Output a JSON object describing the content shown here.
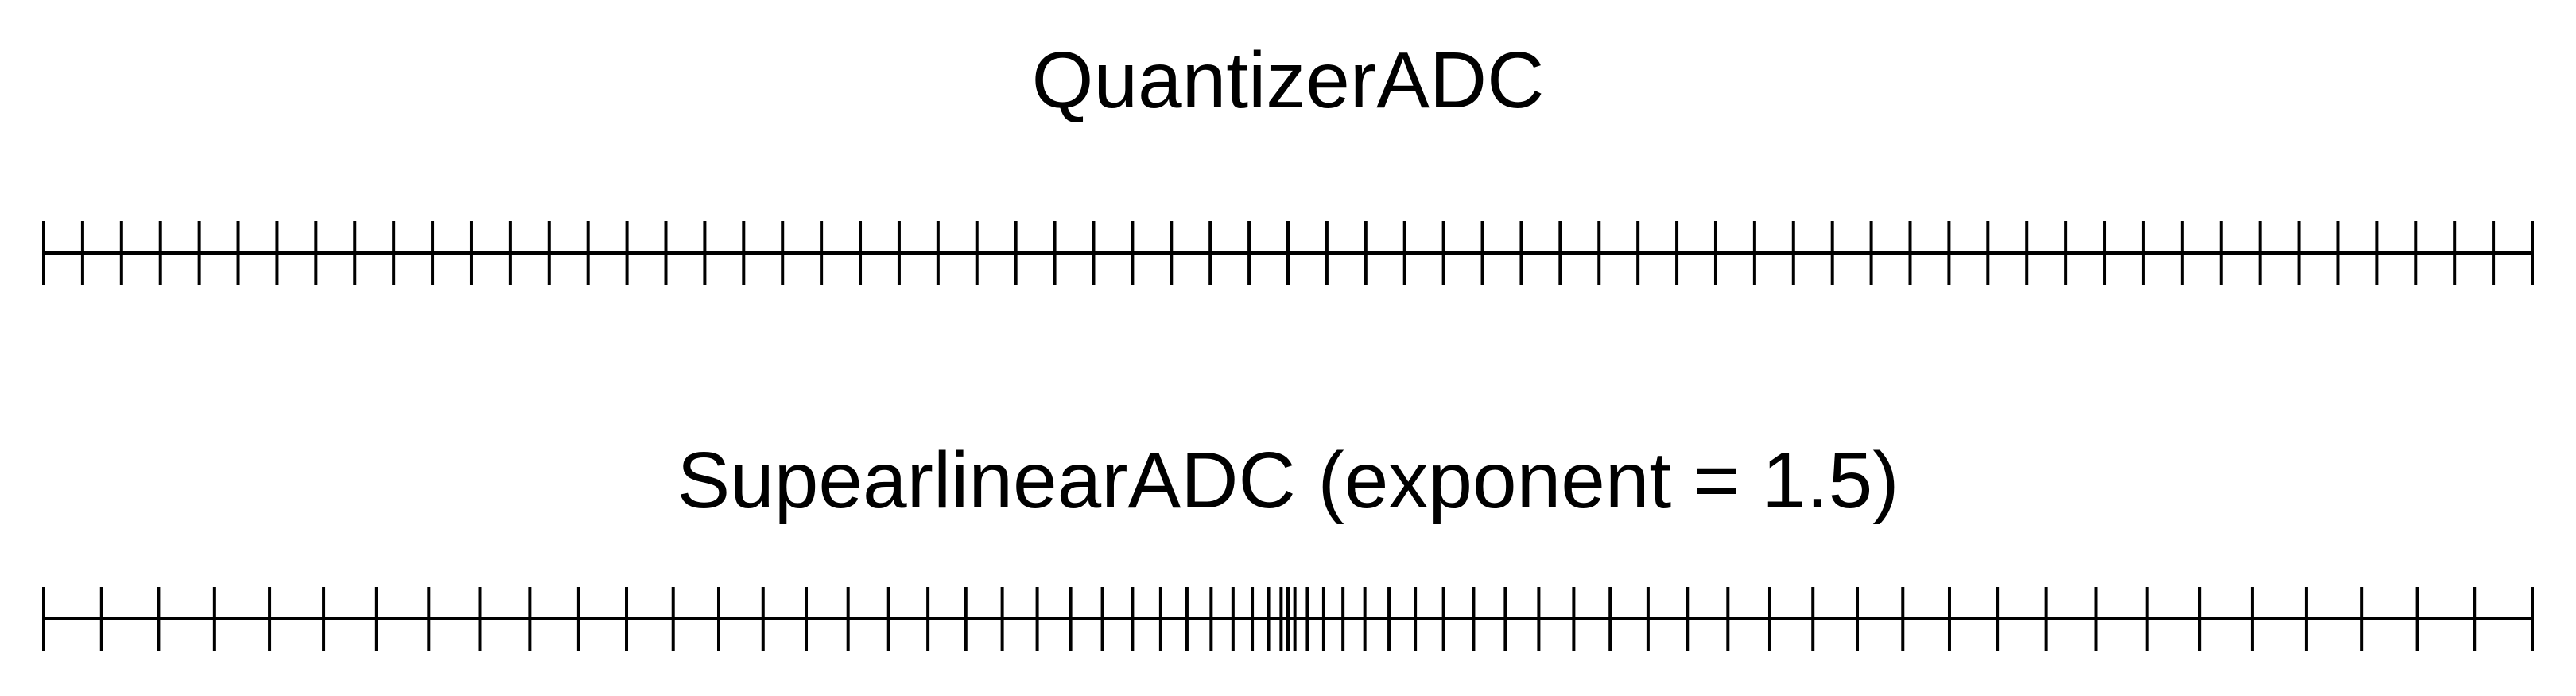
{
  "panels": [
    {
      "title": "QuantizerADC",
      "scale": "uniform",
      "range": [
        -1,
        1
      ],
      "levels": 64
    },
    {
      "title": "SupearlinearADC (exponent = 1.5)",
      "scale": "superlinear",
      "exponent": 1.5,
      "range": [
        -1,
        1
      ],
      "levels": 64
    }
  ],
  "colors": {
    "background": "#ffffff",
    "ink": "#000000"
  }
}
